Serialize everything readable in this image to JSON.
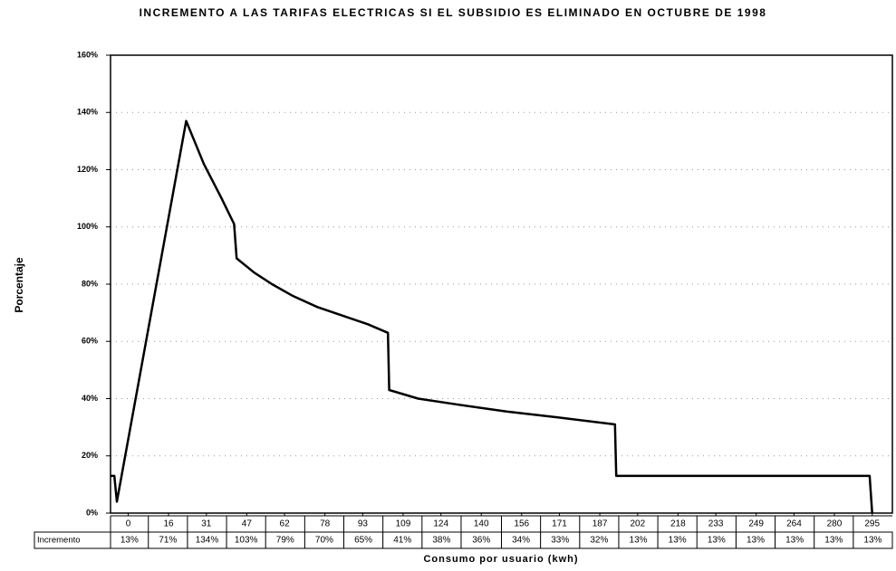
{
  "chart_data": {
    "type": "line",
    "title": "INCREMENTO A LAS TARIFAS ELECTRICAS SI EL SUBSIDIO ES ELIMINADO EN OCTUBRE DE 1998",
    "ylabel": "Porcentaje",
    "xlabel": "Consumo por usuario (kwh)",
    "color": "#000000",
    "grid": true,
    "x": [
      -7,
      -5.5,
      -4.5,
      23,
      30,
      37,
      42,
      43,
      50,
      57,
      65,
      75,
      85,
      95,
      103,
      103.5,
      115,
      130,
      150,
      170,
      193,
      193.5,
      294,
      295
    ],
    "values": [
      13,
      13,
      4,
      137,
      122,
      110,
      101,
      89,
      84,
      80,
      76,
      72,
      69,
      66,
      63,
      43,
      40,
      38,
      35.5,
      33.5,
      31,
      13,
      13,
      0
    ],
    "xlim": [
      -7,
      303
    ],
    "xticks": [
      0,
      16,
      31,
      47,
      62,
      78,
      93,
      109,
      124,
      140,
      156,
      171,
      187,
      202,
      218,
      233,
      249,
      264,
      280,
      295
    ],
    "ylim": [
      0,
      160
    ],
    "yticks": [
      {
        "value": 0,
        "label": "0%"
      },
      {
        "value": 20,
        "label": "20%"
      },
      {
        "value": 40,
        "label": "40%"
      },
      {
        "value": 60,
        "label": "60%"
      },
      {
        "value": 80,
        "label": "80%"
      },
      {
        "value": 100,
        "label": "100%"
      },
      {
        "value": 120,
        "label": "120%"
      },
      {
        "value": 140,
        "label": "140%"
      },
      {
        "value": 160,
        "label": "160%"
      }
    ],
    "table": {
      "row_label": "Incremento",
      "values": [
        13,
        71,
        134,
        103,
        79,
        70,
        65,
        41,
        38,
        36,
        34,
        33,
        32,
        13,
        13,
        13,
        13,
        13,
        13,
        13
      ],
      "value_labels": [
        "13%",
        "71%",
        "134%",
        "103%",
        "79%",
        "70%",
        "65%",
        "41%",
        "38%",
        "36%",
        "34%",
        "33%",
        "32%",
        "13%",
        "13%",
        "13%",
        "13%",
        "13%",
        "13%",
        "13%"
      ]
    }
  }
}
